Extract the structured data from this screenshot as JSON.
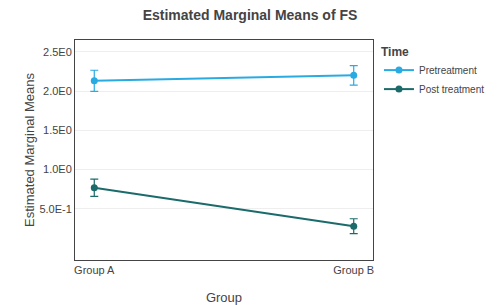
{
  "chart_data": {
    "type": "line",
    "title": "Estimated Marginal Means of FS",
    "xlabel": "Group",
    "ylabel": "Estimated Marginal Means",
    "legend_title": "Time",
    "categories": [
      "Group A",
      "Group B"
    ],
    "series": [
      {
        "name": "Pretreatment",
        "color": "#29ABE2",
        "marker": "circle",
        "line_style": "solid",
        "values": [
          2.13,
          2.2
        ],
        "errors": [
          0.135,
          0.125
        ]
      },
      {
        "name": "Post treatment",
        "color": "#1B6B6B",
        "marker": "circle",
        "line_style": "solid",
        "values": [
          0.77,
          0.28
        ],
        "errors": [
          0.11,
          0.095
        ]
      }
    ],
    "ylim": [
      -0.15,
      2.65
    ],
    "yticks": [
      {
        "value": 0.5,
        "label": "5.0E-1"
      },
      {
        "value": 1.0,
        "label": "1.0E0"
      },
      {
        "value": 1.5,
        "label": "1.5E0"
      },
      {
        "value": 2.0,
        "label": "2.0E0"
      },
      {
        "value": 2.5,
        "label": "2.5E0"
      }
    ],
    "grid": true,
    "legend": "right"
  }
}
